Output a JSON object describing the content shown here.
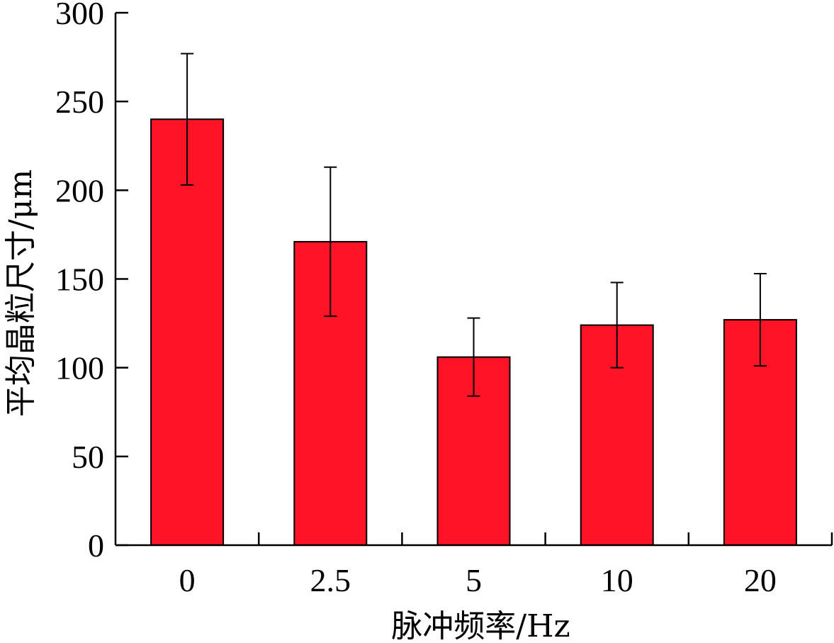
{
  "chart_data": {
    "type": "bar",
    "title": "",
    "xlabel": "脉冲频率/Hz",
    "ylabel": "平均晶粒尺寸/μm",
    "categories": [
      "0",
      "2.5",
      "5",
      "10",
      "20"
    ],
    "values": [
      240,
      171,
      106,
      124,
      127
    ],
    "error_upper": [
      277,
      213,
      128,
      148,
      153
    ],
    "error_lower": [
      203,
      129,
      84,
      100,
      101
    ],
    "ylim": [
      0,
      300
    ],
    "yticks": [
      0,
      50,
      100,
      150,
      200,
      250,
      300
    ],
    "grid": false,
    "legend": "none",
    "bar_color": "#ff1427",
    "edge_color": "#000000"
  }
}
